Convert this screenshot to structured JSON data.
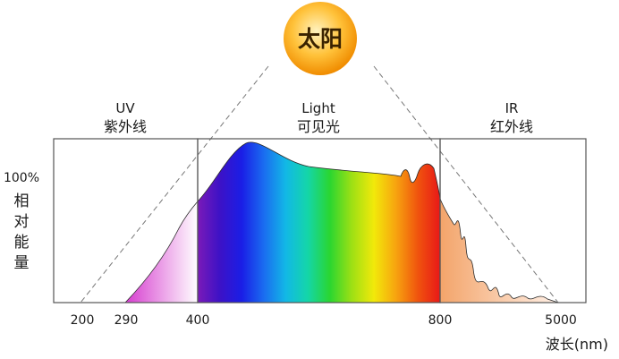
{
  "sun": {
    "label": "太阳",
    "colors": {
      "center": "#fff3c0",
      "mid": "#ffc23a",
      "edge": "#f08c00"
    }
  },
  "regions": [
    {
      "id": "uv",
      "label_en": "UV",
      "label_cn": "紫外线"
    },
    {
      "id": "light",
      "label_en": "Light",
      "label_cn": "可见光"
    },
    {
      "id": "ir",
      "label_en": "IR",
      "label_cn": "红外线"
    }
  ],
  "y_axis": {
    "value": "100%",
    "label_chars": [
      "相",
      "对",
      "能",
      "量"
    ]
  },
  "x_axis": {
    "ticks": [
      "200",
      "290",
      "400",
      "800",
      "5000"
    ],
    "label": "波长(nm)"
  },
  "colors": {
    "uv_fill": [
      "#d63ccf",
      "#ffffff"
    ],
    "ir_fill": [
      "#f3a46a",
      "#fff0e6"
    ],
    "visible_gradient": [
      "#7a1ab8",
      "#3d12c6",
      "#1a1ee6",
      "#1a6cf0",
      "#12b8e6",
      "#14d6a8",
      "#2ad630",
      "#9ee014",
      "#f2e90a",
      "#f7a30f",
      "#f0530e",
      "#e81818"
    ],
    "frame": "#555555",
    "guide": "#777777"
  }
}
